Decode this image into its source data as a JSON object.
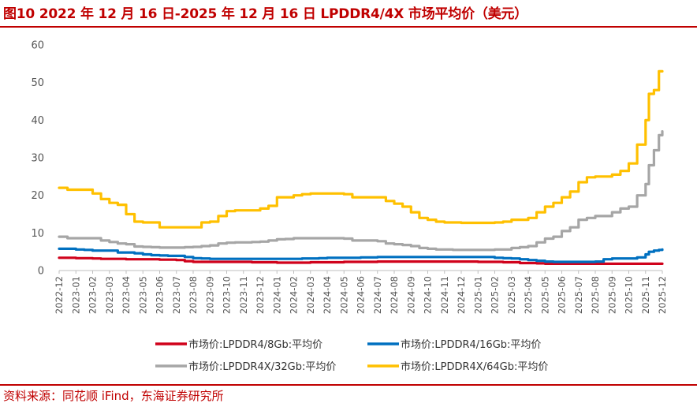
{
  "header": {
    "title": "图10  2022 年 12 月 16 日-2025 年 12 月 16 日 LPDDR4/4X 市场平均价（美元）"
  },
  "footer": {
    "source": "资料来源：同花顺 iFind，东海证券研究所"
  },
  "chart_data": {
    "type": "line",
    "title": "2022 年 12 月 16 日-2025 年 12 月 16 日 LPDDR4/4X 市场平均价（美元）",
    "xlabel": "",
    "ylabel": "",
    "ylim": [
      0,
      60
    ],
    "yticks": [
      0,
      10,
      20,
      30,
      40,
      50,
      60
    ],
    "xticks": [
      "2022-12",
      "2023-01",
      "2023-02",
      "2023-03",
      "2023-04",
      "2023-05",
      "2023-06",
      "2023-07",
      "2023-08",
      "2023-09",
      "2023-10",
      "2023-11",
      "2023-12",
      "2024-01",
      "2024-02",
      "2024-03",
      "2024-04",
      "2024-05",
      "2024-06",
      "2024-07",
      "2024-08",
      "2024-09",
      "2024-10",
      "2024-11",
      "2024-12",
      "2025-01",
      "2025-02",
      "2025-03",
      "2025-04",
      "2025-05",
      "2025-06",
      "2025-07",
      "2025-08",
      "2025-09",
      "2025-10",
      "2025-11",
      "2025-12"
    ],
    "x_months": [
      0,
      0.5,
      1,
      1.5,
      2,
      2.5,
      3,
      3.5,
      4,
      4.5,
      5,
      5.5,
      6,
      6.5,
      7,
      7.5,
      8,
      8.5,
      9,
      9.5,
      10,
      10.5,
      11,
      11.5,
      12,
      12.5,
      13,
      13.5,
      14,
      14.5,
      15,
      15.5,
      16,
      16.5,
      17,
      17.5,
      18,
      18.5,
      19,
      19.5,
      20,
      20.5,
      21,
      21.5,
      22,
      22.5,
      23,
      23.5,
      24,
      24.5,
      25,
      25.5,
      26,
      26.5,
      27,
      27.5,
      28,
      28.5,
      29,
      29.5,
      30,
      30.5,
      31,
      31.5,
      32,
      32.5,
      33,
      33.5,
      34,
      34.5,
      35,
      35.2,
      35.5,
      35.8,
      36
    ],
    "grid": false,
    "legend_position": "bottom",
    "series": [
      {
        "name": "市场价:LPDDR4/8Gb:平均价",
        "color": "#d0021b",
        "values": [
          3.4,
          3.4,
          3.3,
          3.3,
          3.2,
          3.1,
          3.1,
          3.1,
          3.0,
          3.0,
          3.0,
          3.0,
          2.9,
          2.9,
          2.8,
          2.5,
          2.3,
          2.3,
          2.3,
          2.3,
          2.3,
          2.3,
          2.3,
          2.2,
          2.2,
          2.2,
          2.1,
          2.1,
          2.1,
          2.1,
          2.2,
          2.2,
          2.2,
          2.2,
          2.3,
          2.3,
          2.3,
          2.3,
          2.4,
          2.4,
          2.4,
          2.4,
          2.4,
          2.4,
          2.4,
          2.4,
          2.4,
          2.4,
          2.4,
          2.4,
          2.3,
          2.3,
          2.3,
          2.2,
          2.2,
          2.0,
          2.0,
          1.9,
          1.8,
          1.8,
          1.8,
          1.8,
          1.8,
          1.8,
          1.8,
          1.8,
          1.8,
          1.8,
          1.8,
          1.8,
          1.8,
          1.8,
          1.8,
          1.8,
          1.8
        ]
      },
      {
        "name": "市场价:LPDDR4/16Gb:平均价",
        "color": "#0070c0",
        "values": [
          5.8,
          5.8,
          5.6,
          5.5,
          5.3,
          5.3,
          5.3,
          4.8,
          4.8,
          4.6,
          4.3,
          4.1,
          4.0,
          3.9,
          3.9,
          3.6,
          3.3,
          3.2,
          3.1,
          3.1,
          3.1,
          3.1,
          3.1,
          3.1,
          3.1,
          3.1,
          3.1,
          3.1,
          3.1,
          3.2,
          3.2,
          3.3,
          3.4,
          3.4,
          3.4,
          3.4,
          3.5,
          3.5,
          3.6,
          3.6,
          3.6,
          3.6,
          3.6,
          3.6,
          3.6,
          3.6,
          3.6,
          3.6,
          3.6,
          3.6,
          3.6,
          3.6,
          3.4,
          3.3,
          3.2,
          3.0,
          2.8,
          2.6,
          2.4,
          2.3,
          2.3,
          2.3,
          2.3,
          2.3,
          2.4,
          3.0,
          3.2,
          3.2,
          3.2,
          3.5,
          4.3,
          5.0,
          5.3,
          5.5,
          5.6
        ]
      },
      {
        "name": "市场价:LPDDR4X/32Gb:平均价",
        "color": "#a6a6a6",
        "values": [
          9.0,
          8.6,
          8.6,
          8.6,
          8.6,
          8.0,
          7.6,
          7.2,
          7.0,
          6.4,
          6.3,
          6.2,
          6.1,
          6.1,
          6.1,
          6.2,
          6.3,
          6.5,
          6.7,
          7.2,
          7.4,
          7.5,
          7.5,
          7.6,
          7.7,
          8.0,
          8.3,
          8.4,
          8.6,
          8.6,
          8.6,
          8.6,
          8.6,
          8.6,
          8.5,
          8.0,
          8.0,
          8.0,
          7.8,
          7.2,
          7.0,
          6.8,
          6.5,
          6.0,
          5.8,
          5.6,
          5.6,
          5.5,
          5.5,
          5.5,
          5.5,
          5.5,
          5.6,
          5.6,
          6.0,
          6.2,
          6.5,
          7.5,
          8.5,
          9.0,
          10.5,
          11.5,
          13.5,
          14.0,
          14.5,
          14.5,
          15.5,
          16.5,
          17.0,
          20.0,
          23.0,
          28.0,
          32.0,
          36.0,
          37.0
        ]
      },
      {
        "name": "市场价:LPDDR4X/64Gb:平均价",
        "color": "#ffc000",
        "values": [
          22.0,
          21.5,
          21.5,
          21.5,
          20.5,
          19.0,
          18.0,
          17.5,
          15.0,
          13.0,
          12.8,
          12.8,
          11.5,
          11.5,
          11.5,
          11.5,
          11.5,
          12.8,
          13.0,
          14.5,
          15.8,
          16.0,
          16.0,
          16.0,
          16.5,
          17.2,
          19.5,
          19.5,
          20.0,
          20.3,
          20.5,
          20.5,
          20.5,
          20.5,
          20.3,
          19.5,
          19.5,
          19.5,
          19.5,
          18.5,
          17.8,
          17.0,
          15.5,
          14.0,
          13.5,
          13.0,
          12.8,
          12.8,
          12.7,
          12.7,
          12.7,
          12.7,
          12.8,
          13.0,
          13.5,
          13.5,
          14.0,
          15.5,
          17.0,
          18.0,
          19.5,
          21.0,
          23.5,
          24.8,
          25.0,
          25.0,
          25.5,
          26.5,
          28.5,
          33.5,
          40.0,
          47.0,
          48.0,
          53.0,
          53.0
        ]
      }
    ]
  }
}
